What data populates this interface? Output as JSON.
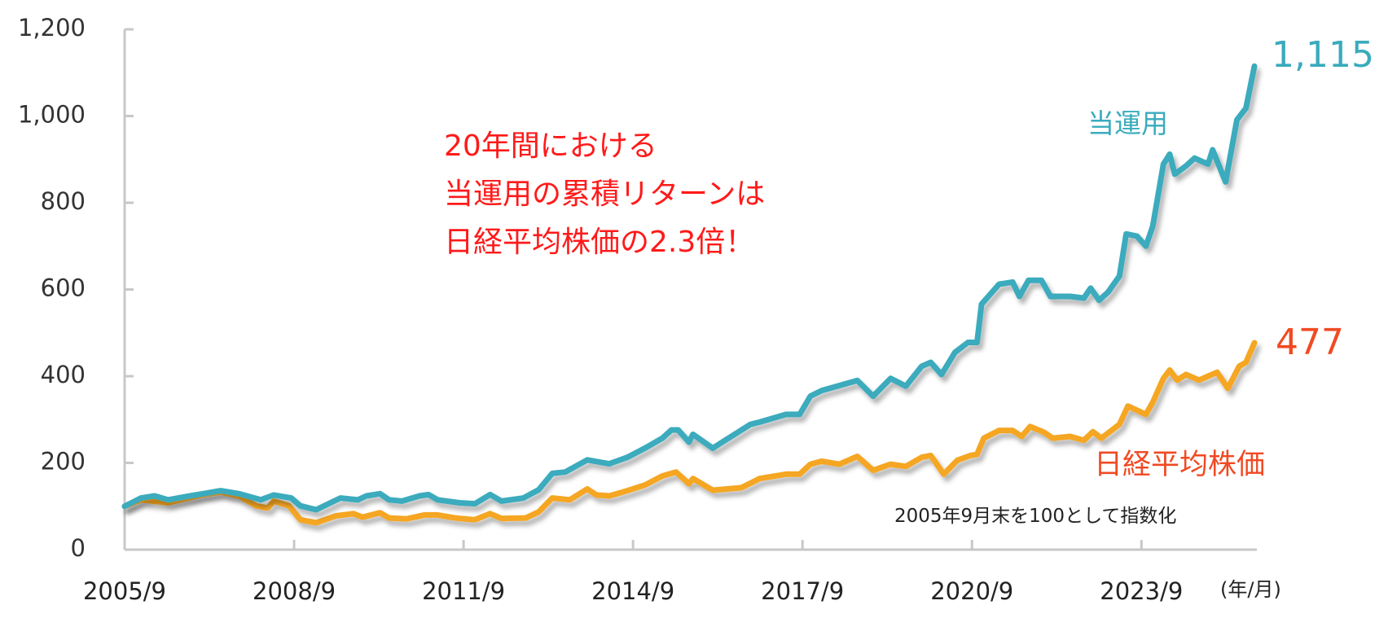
{
  "chart_data": {
    "type": "line",
    "title": "",
    "xlabel": "",
    "ylabel": "",
    "x_unit_label": "(年/月)",
    "ylim": [
      0,
      1200
    ],
    "xlim": [
      2005.75,
      2025.75
    ],
    "y_ticks": [
      0,
      200,
      400,
      600,
      800,
      1000,
      1200
    ],
    "y_tick_labels": [
      "0",
      "200",
      "400",
      "600",
      "800",
      "1,000",
      "1,200"
    ],
    "x_ticks": [
      2005.75,
      2008.75,
      2011.75,
      2014.75,
      2017.75,
      2020.75,
      2023.75
    ],
    "x_tick_labels": [
      "2005/9",
      "2008/9",
      "2011/9",
      "2014/9",
      "2017/9",
      "2020/9",
      "2023/9"
    ],
    "grid": false,
    "note": "2005年9月末を100として指数化",
    "annotation_lines": [
      "20年間における",
      "当運用の累積リターンは",
      "日経平均株価の2.3倍！"
    ],
    "series": [
      {
        "name": "当運用",
        "color": "#3aabbd",
        "end_label": "1,115",
        "end_value": 1115,
        "x": [
          2005.75,
          2006.04,
          2006.28,
          2006.52,
          2006.91,
          2007.14,
          2007.45,
          2007.77,
          2008.16,
          2008.39,
          2008.7,
          2008.86,
          2009.14,
          2009.57,
          2009.88,
          2010.03,
          2010.27,
          2010.43,
          2010.66,
          2010.97,
          2011.13,
          2011.29,
          2011.68,
          2011.95,
          2012.22,
          2012.42,
          2012.81,
          2013.08,
          2013.32,
          2013.55,
          2013.94,
          2014.33,
          2014.65,
          2014.96,
          2015.27,
          2015.43,
          2015.55,
          2015.74,
          2015.81,
          2016.16,
          2016.83,
          2016.99,
          2017.46,
          2017.7,
          2017.89,
          2018.09,
          2018.72,
          2019.0,
          2019.31,
          2019.58,
          2019.86,
          2020.02,
          2020.21,
          2020.45,
          2020.68,
          2020.84,
          2020.92,
          2021.23,
          2021.47,
          2021.59,
          2021.75,
          2021.98,
          2022.14,
          2022.49,
          2022.73,
          2022.85,
          2023.0,
          2023.16,
          2023.36,
          2023.48,
          2023.67,
          2023.83,
          2023.95,
          2024.14,
          2024.25,
          2024.34,
          2024.54,
          2024.69,
          2024.93,
          2025.01,
          2025.24,
          2025.44,
          2025.6,
          2025.75
        ],
        "y": [
          100,
          119,
          124,
          115,
          124,
          129,
          136,
          129,
          115,
          126,
          119,
          101,
          92,
          119,
          115,
          124,
          129,
          115,
          112,
          124,
          127,
          115,
          108,
          106,
          127,
          112,
          119,
          138,
          176,
          179,
          207,
          198,
          213,
          234,
          257,
          276,
          276,
          248,
          266,
          234,
          289,
          294,
          312,
          312,
          354,
          367,
          390,
          354,
          395,
          377,
          423,
          432,
          404,
          455,
          478,
          478,
          566,
          612,
          617,
          584,
          621,
          621,
          584,
          584,
          580,
          603,
          575,
          594,
          631,
          728,
          723,
          700,
          746,
          889,
          912,
          866,
          885,
          903,
          889,
          922,
          848,
          991,
          1018,
          1115
        ]
      },
      {
        "name": "日経平均株価",
        "color": "#f5a623",
        "label_color": "#f04a23",
        "end_label": "477",
        "end_value": 477,
        "x": [
          2005.75,
          2006.04,
          2006.52,
          2007.14,
          2007.45,
          2007.77,
          2008.08,
          2008.28,
          2008.39,
          2008.66,
          2008.86,
          2009.14,
          2009.49,
          2009.8,
          2009.96,
          2010.27,
          2010.43,
          2010.74,
          2011.06,
          2011.29,
          2011.6,
          2011.95,
          2012.22,
          2012.42,
          2012.85,
          2013.08,
          2013.32,
          2013.63,
          2013.94,
          2014.1,
          2014.33,
          2014.65,
          2014.96,
          2015.27,
          2015.51,
          2015.74,
          2015.81,
          2016.16,
          2016.52,
          2016.67,
          2016.99,
          2017.46,
          2017.7,
          2017.89,
          2018.09,
          2018.4,
          2018.72,
          2019.0,
          2019.31,
          2019.58,
          2019.86,
          2020.02,
          2020.25,
          2020.49,
          2020.72,
          2020.84,
          2020.96,
          2021.23,
          2021.47,
          2021.63,
          2021.78,
          2022.02,
          2022.18,
          2022.49,
          2022.73,
          2022.89,
          2023.04,
          2023.36,
          2023.51,
          2023.83,
          2023.95,
          2024.14,
          2024.25,
          2024.38,
          2024.54,
          2024.77,
          2024.93,
          2025.09,
          2025.28,
          2025.48,
          2025.6,
          2025.75
        ],
        "y": [
          100,
          115,
          108,
          127,
          133,
          124,
          101,
          96,
          112,
          101,
          69,
          62,
          78,
          83,
          75,
          85,
          73,
          71,
          80,
          80,
          73,
          69,
          83,
          72,
          73,
          87,
          119,
          115,
          140,
          126,
          124,
          136,
          149,
          170,
          179,
          152,
          164,
          137,
          141,
          143,
          164,
          174,
          174,
          197,
          204,
          197,
          215,
          183,
          197,
          192,
          213,
          217,
          174,
          206,
          217,
          220,
          257,
          275,
          275,
          261,
          284,
          271,
          257,
          261,
          252,
          272,
          257,
          289,
          331,
          312,
          340,
          395,
          414,
          391,
          404,
          391,
          400,
          409,
          372,
          423,
          432,
          477
        ]
      }
    ]
  }
}
